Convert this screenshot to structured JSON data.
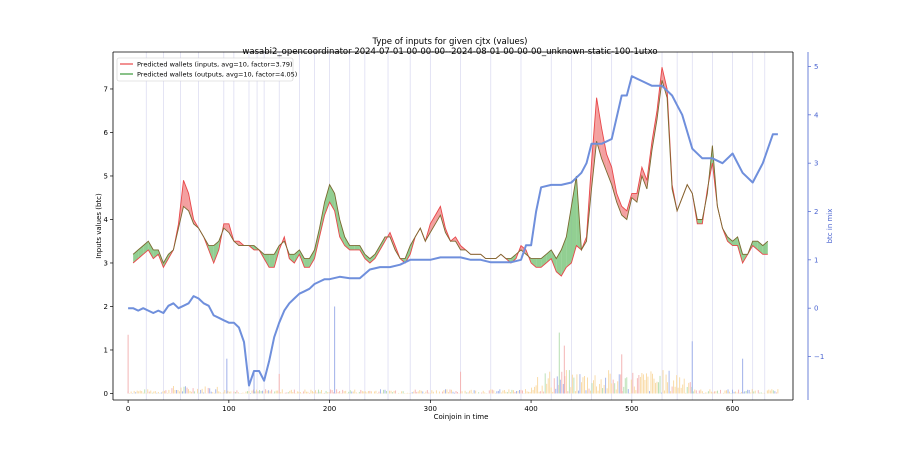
{
  "chart_data": {
    "type": "line",
    "title": "Type of inputs for given cjtx (values)",
    "subtitle": "wasabi2_opencoordinator 2024-07-01 00-00-00--2024-08-01 00-00-00_unknown-static-100-1utxo",
    "xlabel": "Coinjoin in time",
    "ylabel": "Inputs values (btc)",
    "ylabel_right": "btc in mix",
    "xlim": [
      -15,
      660
    ],
    "ylim": [
      -0.15,
      7.85
    ],
    "ylim_right": [
      -1.9,
      5.3
    ],
    "x_ticks": [
      "0",
      "100",
      "200",
      "300",
      "400",
      "500",
      "600"
    ],
    "y_ticks": [
      "0",
      "1",
      "2",
      "3",
      "4",
      "5",
      "6",
      "7"
    ],
    "y_right_ticks": [
      "−1",
      "0",
      "1",
      "2",
      "3",
      "4",
      "5"
    ],
    "grid": false,
    "legend": "top-left",
    "colors": {
      "inputs": "#e8474a",
      "outputs": "#3a9a3a",
      "btc_in_mix": "#6f8fdc",
      "fill_red": "#f08080",
      "fill_green": "#6dbf6d",
      "vlines": "#d8d8f0",
      "bars_orange": "#f9d8a0",
      "bars_pink": "#f4b4b4",
      "bars_blue": "#9fb0ea",
      "bars_green": "#b6deb0"
    },
    "series": [
      {
        "name": "Predicted wallets (inputs, avg=10, factor=3.79)",
        "axis": "left",
        "x": [
          5,
          10,
          15,
          20,
          25,
          30,
          35,
          40,
          45,
          50,
          55,
          60,
          65,
          70,
          75,
          80,
          85,
          90,
          95,
          100,
          105,
          110,
          115,
          120,
          125,
          130,
          135,
          140,
          145,
          150,
          155,
          160,
          165,
          170,
          175,
          180,
          185,
          190,
          195,
          200,
          205,
          210,
          215,
          220,
          225,
          230,
          235,
          240,
          245,
          250,
          255,
          260,
          265,
          270,
          275,
          280,
          285,
          290,
          295,
          300,
          305,
          310,
          315,
          320,
          325,
          330,
          335,
          340,
          345,
          350,
          355,
          360,
          365,
          370,
          375,
          380,
          385,
          390,
          395,
          400,
          405,
          410,
          415,
          420,
          425,
          430,
          435,
          440,
          445,
          450,
          455,
          460,
          465,
          470,
          475,
          480,
          485,
          490,
          495,
          500,
          505,
          510,
          515,
          520,
          525,
          530,
          535,
          540,
          545,
          550,
          555,
          560,
          565,
          570,
          575,
          580,
          585,
          590,
          595,
          600,
          605,
          610,
          615,
          620,
          625,
          630,
          635
        ],
        "values": [
          3.0,
          3.1,
          3.2,
          3.3,
          3.1,
          3.2,
          2.9,
          3.1,
          3.3,
          3.9,
          4.9,
          4.6,
          4.0,
          3.8,
          3.6,
          3.3,
          3.0,
          3.3,
          3.9,
          3.9,
          3.5,
          3.5,
          3.4,
          3.4,
          3.3,
          3.3,
          3.1,
          2.9,
          2.9,
          3.3,
          3.6,
          3.1,
          3.0,
          3.2,
          2.9,
          2.9,
          3.1,
          3.6,
          4.1,
          4.4,
          4.2,
          3.6,
          3.4,
          3.3,
          3.3,
          3.3,
          3.1,
          3.0,
          3.1,
          3.3,
          3.5,
          3.7,
          3.4,
          3.1,
          3.0,
          3.2,
          3.6,
          3.8,
          3.5,
          3.9,
          4.1,
          4.3,
          3.8,
          3.5,
          3.6,
          3.4,
          3.3,
          3.2,
          3.2,
          3.2,
          3.1,
          3.1,
          3.1,
          3.2,
          3.1,
          3.0,
          3.1,
          3.4,
          3.3,
          3.0,
          2.9,
          2.9,
          3.0,
          3.1,
          2.8,
          2.7,
          2.9,
          3.0,
          3.4,
          3.3,
          3.6,
          5.3,
          6.8,
          6.1,
          5.5,
          5.2,
          4.6,
          4.3,
          4.2,
          4.6,
          4.6,
          5.2,
          4.9,
          5.8,
          6.5,
          7.5,
          7.0,
          4.8,
          4.2,
          4.5,
          4.8,
          4.6,
          3.9,
          3.9,
          4.7,
          5.3,
          4.3,
          3.8,
          3.5,
          3.4,
          3.4,
          3.0,
          3.2,
          3.4,
          3.3,
          3.2,
          3.2
        ]
      },
      {
        "name": "Predicted wallets (outputs, avg=10, factor=4.05)",
        "axis": "left",
        "x": [
          5,
          10,
          15,
          20,
          25,
          30,
          35,
          40,
          45,
          50,
          55,
          60,
          65,
          70,
          75,
          80,
          85,
          90,
          95,
          100,
          105,
          110,
          115,
          120,
          125,
          130,
          135,
          140,
          145,
          150,
          155,
          160,
          165,
          170,
          175,
          180,
          185,
          190,
          195,
          200,
          205,
          210,
          215,
          220,
          225,
          230,
          235,
          240,
          245,
          250,
          255,
          260,
          265,
          270,
          275,
          280,
          285,
          290,
          295,
          300,
          305,
          310,
          315,
          320,
          325,
          330,
          335,
          340,
          345,
          350,
          355,
          360,
          365,
          370,
          375,
          380,
          385,
          390,
          395,
          400,
          405,
          410,
          415,
          420,
          425,
          430,
          435,
          440,
          445,
          450,
          455,
          460,
          465,
          470,
          475,
          480,
          485,
          490,
          495,
          500,
          505,
          510,
          515,
          520,
          525,
          530,
          535,
          540,
          545,
          550,
          555,
          560,
          565,
          570,
          575,
          580,
          585,
          590,
          595,
          600,
          605,
          610,
          615,
          620,
          625,
          630,
          635
        ],
        "values": [
          3.2,
          3.3,
          3.4,
          3.5,
          3.3,
          3.3,
          3.0,
          3.2,
          3.3,
          3.8,
          4.3,
          4.2,
          3.9,
          3.8,
          3.6,
          3.4,
          3.4,
          3.5,
          3.8,
          3.7,
          3.5,
          3.4,
          3.4,
          3.4,
          3.4,
          3.3,
          3.2,
          3.2,
          3.2,
          3.4,
          3.5,
          3.2,
          3.2,
          3.3,
          3.1,
          3.1,
          3.3,
          3.8,
          4.4,
          4.8,
          4.6,
          4.0,
          3.6,
          3.4,
          3.4,
          3.4,
          3.2,
          3.1,
          3.2,
          3.4,
          3.6,
          3.6,
          3.3,
          3.1,
          3.1,
          3.4,
          3.6,
          3.8,
          3.5,
          3.7,
          3.9,
          4.1,
          3.7,
          3.5,
          3.5,
          3.3,
          3.3,
          3.2,
          3.2,
          3.2,
          3.1,
          3.1,
          3.1,
          3.2,
          3.1,
          3.1,
          3.2,
          3.3,
          3.2,
          3.1,
          3.1,
          3.1,
          3.2,
          3.3,
          3.1,
          3.3,
          3.6,
          4.3,
          5.0,
          3.3,
          3.5,
          4.7,
          5.8,
          5.4,
          5.1,
          4.8,
          4.4,
          4.1,
          4.0,
          4.5,
          4.4,
          5.0,
          4.7,
          5.6,
          6.3,
          7.2,
          6.8,
          4.7,
          4.2,
          4.5,
          4.8,
          4.6,
          4.0,
          4.0,
          4.6,
          5.7,
          4.3,
          3.8,
          3.6,
          3.5,
          3.6,
          3.2,
          3.2,
          3.5,
          3.5,
          3.4,
          3.5
        ]
      },
      {
        "name": "btc in mix",
        "axis": "right",
        "x": [
          0,
          5,
          10,
          15,
          20,
          25,
          30,
          35,
          40,
          45,
          50,
          55,
          60,
          65,
          70,
          75,
          80,
          85,
          90,
          95,
          100,
          105,
          110,
          115,
          120,
          125,
          130,
          135,
          140,
          145,
          150,
          155,
          160,
          165,
          170,
          175,
          180,
          185,
          190,
          195,
          200,
          210,
          220,
          230,
          240,
          250,
          260,
          270,
          280,
          290,
          300,
          310,
          320,
          330,
          340,
          350,
          360,
          370,
          380,
          390,
          395,
          400,
          405,
          410,
          420,
          430,
          440,
          450,
          455,
          460,
          470,
          480,
          490,
          495,
          500,
          510,
          520,
          530,
          540,
          545,
          550,
          560,
          570,
          580,
          590,
          600,
          610,
          620,
          630,
          640,
          645
        ],
        "values": [
          0.0,
          0.0,
          -0.05,
          0.0,
          -0.05,
          -0.1,
          -0.05,
          -0.1,
          0.05,
          0.1,
          0.0,
          0.05,
          0.1,
          0.25,
          0.2,
          0.1,
          0.05,
          -0.15,
          -0.2,
          -0.25,
          -0.3,
          -0.3,
          -0.4,
          -0.7,
          -1.6,
          -1.3,
          -1.3,
          -1.5,
          -1.1,
          -0.6,
          -0.3,
          -0.05,
          0.1,
          0.2,
          0.3,
          0.35,
          0.4,
          0.5,
          0.55,
          0.6,
          0.6,
          0.65,
          0.62,
          0.62,
          0.8,
          0.85,
          0.85,
          0.9,
          1.0,
          1.0,
          1.0,
          1.05,
          1.05,
          1.05,
          1.0,
          1.0,
          0.95,
          0.95,
          0.95,
          1.0,
          1.3,
          1.3,
          2.0,
          2.5,
          2.55,
          2.55,
          2.6,
          2.8,
          3.0,
          3.4,
          3.4,
          3.5,
          4.4,
          4.4,
          4.8,
          4.7,
          4.6,
          4.6,
          4.4,
          4.2,
          4.0,
          3.3,
          3.1,
          3.1,
          3.0,
          3.2,
          2.8,
          2.6,
          3.0,
          3.6,
          3.6
        ]
      }
    ]
  },
  "legend": {
    "inputs_label": "Predicted wallets (inputs, avg=10, factor=3.79)",
    "outputs_label": "Predicted wallets (outputs, avg=10, factor=4.05)"
  }
}
